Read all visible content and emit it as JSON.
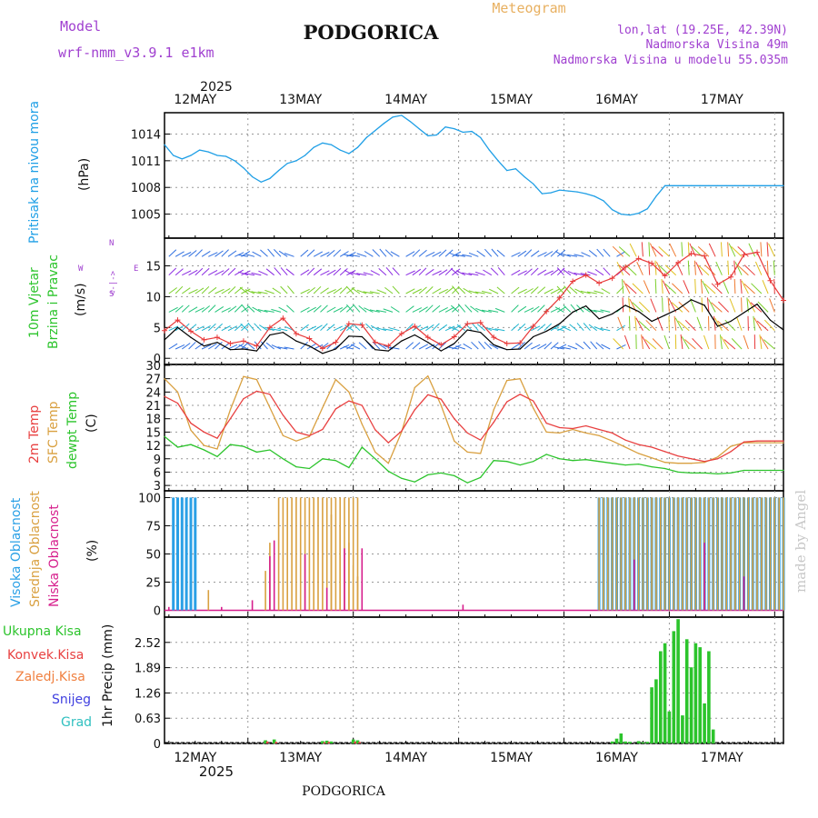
{
  "header": {
    "model_label": "Model",
    "model_name": "wrf-nmm_v3.9.1 e1km",
    "title": "PODGORICA",
    "meteogram_label": "Meteogram",
    "lonlat": "lon,lat (19.25E, 42.39N)",
    "elevation": "Nadmorska Visina 49m",
    "model_elevation": "Nadmorska Visina u modelu 55.035m",
    "bottom_title": "PODGORICA",
    "watermark": "made by Angel"
  },
  "colors": {
    "pressure": "#1f9fe6",
    "wind_speed": "#000000",
    "gust": "#e83a3a",
    "temp2m": "#e84040",
    "sfc_temp": "#d9a040",
    "dewpt": "#2cc42c",
    "cloud_high": "#2aa0e6",
    "cloud_mid": "#d9a040",
    "cloud_low": "#d61e8c",
    "precip_total": "#2cc42c",
    "precip_conv": "#e84040",
    "precip_frozen": "#f08040",
    "snow": "#4040e0",
    "graupel": "#30c0c0",
    "label_purple": "#a040d0",
    "meteogram_orange": "#e8b060"
  },
  "time_axis": {
    "year": "2025",
    "days": [
      "12MAY",
      "13MAY",
      "14MAY",
      "15MAY",
      "16MAY",
      "17MAY"
    ],
    "range_hours": [
      -7,
      134
    ]
  },
  "chart_data": [
    {
      "type": "line",
      "name": "pressure",
      "ylabel_left": "Pritisak na nivou mora",
      "ylabel_unit": "(hPa)",
      "ylim": [
        1002.3,
        1016.4
      ],
      "yticks": [
        1005,
        1008,
        1011,
        1014
      ],
      "x": [
        -7,
        -5,
        -3,
        -1,
        1,
        3,
        5,
        7,
        9,
        11,
        13,
        15,
        17,
        19,
        21,
        23,
        25,
        27,
        29,
        31,
        33,
        35,
        37,
        39,
        41,
        43,
        45,
        47,
        49,
        51,
        53,
        55,
        57,
        59,
        61,
        63,
        65,
        67,
        69,
        71,
        73,
        75,
        77,
        79,
        81,
        83,
        85,
        87,
        89,
        91,
        93,
        95,
        97,
        99,
        101,
        103,
        105,
        107,
        109,
        111,
        113,
        115,
        117,
        119,
        121,
        123,
        125,
        127,
        129,
        131,
        133,
        134
      ],
      "series": [
        {
          "y": [
            1012.8,
            1011.6,
            1011.2,
            1011.6,
            1012.2,
            1012.0,
            1011.6,
            1011.5,
            1011.0,
            1010.2,
            1009.2,
            1008.6,
            1009.0,
            1009.9,
            1010.7,
            1011.0,
            1011.6,
            1012.5,
            1013.0,
            1012.8,
            1012.2,
            1011.8,
            1012.5,
            1013.6,
            1014.4,
            1015.2,
            1015.9,
            1016.1,
            1015.4,
            1014.6,
            1013.8,
            1013.9,
            1014.8,
            1014.6,
            1014.2,
            1014.3,
            1013.6,
            1012.2,
            1011.0,
            1009.9,
            1010.1,
            1009.2,
            1008.4,
            1007.3,
            1007.4,
            1007.7,
            1007.6,
            1007.5,
            1007.3,
            1007.0,
            1006.5,
            1005.5,
            1005.0,
            1004.9,
            1005.1,
            1005.6,
            1007.0,
            1008.2,
            1008.2,
            1008.2,
            1008.2,
            1008.2,
            1008.2,
            1008.2,
            1008.2,
            1008.2,
            1008.2,
            1008.2,
            1008.2,
            1008.2,
            1008.2,
            1008.2
          ]
        }
      ]
    },
    {
      "type": "line",
      "name": "wind",
      "ylabel_left_1": "10m Vjetar",
      "ylabel_left_2": "Brzina i Pravac",
      "ylabel_unit": "(m/s)",
      "compass": {
        "n": "N",
        "s": "S",
        "e": "E",
        "w": "W",
        "arrow": "<-|->"
      },
      "ylim": [
        -1.0,
        19.5
      ],
      "yticks": [
        0,
        5,
        10,
        15
      ],
      "x": [
        -7,
        -4,
        -1,
        2,
        5,
        8,
        11,
        14,
        17,
        20,
        23,
        26,
        29,
        32,
        35,
        38,
        41,
        44,
        47,
        50,
        53,
        56,
        59,
        62,
        65,
        68,
        71,
        74,
        77,
        80,
        83,
        86,
        89,
        92,
        95,
        98,
        101,
        104,
        107,
        110,
        113,
        116,
        119,
        122,
        125,
        128,
        131,
        134
      ],
      "series": [
        {
          "name": "speed",
          "y": [
            3.0,
            5.0,
            3.4,
            2.0,
            2.6,
            1.4,
            1.5,
            1.2,
            3.8,
            4.2,
            2.8,
            2.0,
            0.8,
            1.5,
            3.6,
            3.5,
            1.4,
            1.2,
            2.8,
            3.8,
            2.6,
            1.2,
            2.4,
            4.6,
            4.2,
            2.2,
            1.4,
            1.5,
            3.5,
            4.4,
            5.6,
            7.5,
            8.5,
            6.4,
            7.2,
            8.6,
            7.6,
            6.0,
            7.0,
            8.0,
            9.5,
            8.6,
            5.2,
            6.0,
            7.4,
            8.8,
            6.2,
            4.6
          ]
        },
        {
          "name": "gust",
          "y": [
            4.5,
            6.2,
            4.4,
            3.0,
            3.4,
            2.4,
            2.8,
            2.0,
            5.0,
            6.5,
            4.0,
            3.2,
            1.6,
            2.6,
            5.6,
            5.4,
            2.6,
            2.0,
            4.0,
            5.2,
            3.4,
            2.2,
            3.5,
            5.6,
            5.8,
            3.4,
            2.4,
            2.5,
            5.2,
            7.6,
            9.8,
            12.5,
            13.5,
            12.2,
            13.0,
            14.8,
            16.2,
            15.4,
            13.4,
            15.5,
            17.0,
            16.6,
            12.0,
            13.2,
            16.8,
            17.2,
            12.6,
            9.4
          ]
        }
      ]
    },
    {
      "type": "line",
      "name": "temperature",
      "ylabel_left_1": "2m Temp",
      "ylabel_left_2": "SFC Temp",
      "ylabel_left_3": "dewpt Temp",
      "ylabel_unit": "(C)",
      "ylim": [
        1.8,
        30.2
      ],
      "yticks": [
        3,
        6,
        9,
        12,
        15,
        18,
        21,
        24,
        27,
        30
      ],
      "x": [
        -7,
        -4,
        -1,
        2,
        5,
        8,
        11,
        14,
        17,
        20,
        23,
        26,
        29,
        32,
        35,
        38,
        41,
        44,
        47,
        50,
        53,
        56,
        59,
        62,
        65,
        68,
        71,
        74,
        77,
        80,
        83,
        86,
        89,
        92,
        95,
        98,
        101,
        104,
        107,
        110,
        113,
        116,
        119,
        122,
        125,
        128,
        131,
        134
      ],
      "series": [
        {
          "name": "t2m",
          "y": [
            23.0,
            21.5,
            17.0,
            15.0,
            13.6,
            18.0,
            22.5,
            24.2,
            23.5,
            18.8,
            15.0,
            14.2,
            15.6,
            20.2,
            22.0,
            21.0,
            15.5,
            12.6,
            15.2,
            20.0,
            23.4,
            22.4,
            18.0,
            14.8,
            13.2,
            17.2,
            21.8,
            23.5,
            22.0,
            17.0,
            16.0,
            15.8,
            16.4,
            15.6,
            14.8,
            13.2,
            12.2,
            11.6,
            10.6,
            9.6,
            9.0,
            8.4,
            9.0,
            10.6,
            12.8,
            13.0,
            13.0,
            13.0
          ]
        },
        {
          "name": "sfc",
          "y": [
            27.0,
            24.0,
            15.4,
            12.0,
            11.2,
            20.0,
            27.5,
            26.8,
            20.5,
            14.2,
            13.0,
            14.0,
            20.5,
            26.8,
            24.0,
            16.8,
            10.5,
            8.0,
            15.0,
            25.0,
            27.6,
            21.0,
            13.0,
            10.5,
            10.2,
            20.0,
            26.6,
            27.0,
            20.4,
            15.0,
            14.8,
            15.6,
            14.8,
            14.2,
            13.0,
            11.6,
            10.2,
            9.2,
            8.2,
            8.0,
            8.0,
            8.2,
            9.4,
            11.8,
            12.6,
            12.6,
            12.6,
            12.6
          ]
        },
        {
          "name": "dewpt",
          "y": [
            14.0,
            11.6,
            12.2,
            11.0,
            9.5,
            12.2,
            11.8,
            10.5,
            11.0,
            9.0,
            7.2,
            6.8,
            9.0,
            8.6,
            7.0,
            11.6,
            9.0,
            6.2,
            4.6,
            3.8,
            5.4,
            5.8,
            5.2,
            3.6,
            4.8,
            8.6,
            8.4,
            7.6,
            8.4,
            10.0,
            9.0,
            8.6,
            8.8,
            8.4,
            8.0,
            7.6,
            7.8,
            7.2,
            6.8,
            6.0,
            5.8,
            5.8,
            5.6,
            5.8,
            6.4,
            6.4,
            6.4,
            6.4
          ]
        }
      ]
    },
    {
      "type": "bar",
      "name": "clouds",
      "ylabel_left_1": "Visoka Oblacnost",
      "ylabel_left_2": "Srednja Oblacnost",
      "ylabel_left_3": "Niska Oblacnost",
      "ylabel_unit": "(%)",
      "ylim": [
        -6,
        106
      ],
      "yticks": [
        0,
        25,
        50,
        75,
        100
      ],
      "x_step": 1,
      "series": [
        {
          "name": "high",
          "segments": [
            {
              "from": -5,
              "to": 0,
              "value": 100
            },
            {
              "from": 92,
              "to": 134,
              "value": 100
            }
          ]
        },
        {
          "name": "mid",
          "segments": [
            {
              "from": 19,
              "to": 37,
              "value": 100
            },
            {
              "from": 92,
              "to": 134,
              "value": 100
            }
          ],
          "peaks": [
            {
              "x": 3,
              "v": 18
            },
            {
              "x": 16,
              "v": 35
            },
            {
              "x": 17,
              "v": 60
            },
            {
              "x": 31,
              "v": 85
            },
            {
              "x": 33,
              "v": 75
            },
            {
              "x": 35,
              "v": 60
            },
            {
              "x": 36,
              "v": 40
            },
            {
              "x": 37,
              "v": 30
            }
          ]
        },
        {
          "name": "low",
          "peaks": [
            {
              "x": -6,
              "v": 3
            },
            {
              "x": 6,
              "v": 3
            },
            {
              "x": 13,
              "v": 9
            },
            {
              "x": 17,
              "v": 48
            },
            {
              "x": 18,
              "v": 62
            },
            {
              "x": 25,
              "v": 50
            },
            {
              "x": 30,
              "v": 20
            },
            {
              "x": 34,
              "v": 55
            },
            {
              "x": 38,
              "v": 55
            },
            {
              "x": 61,
              "v": 5
            },
            {
              "x": 100,
              "v": 45
            },
            {
              "x": 116,
              "v": 60
            },
            {
              "x": 125,
              "v": 30
            }
          ]
        }
      ]
    },
    {
      "type": "bar",
      "name": "precip",
      "ylabel_left_1": "Ukupna Kisa",
      "ylabel_left_2": "Konvek.Kisa",
      "ylabel_left_3": "Zaledj.Kisa",
      "ylabel_left_4": "Snijeg",
      "ylabel_left_5": "Grad",
      "ylabel_unit": "1hr Precip (mm)",
      "ylim": [
        0,
        3.15
      ],
      "yticks": [
        0,
        0.63,
        1.26,
        1.89,
        2.52
      ],
      "series": [
        {
          "name": "total",
          "x": [
            16,
            18,
            29,
            30,
            31,
            36,
            37,
            95,
            96,
            97,
            98,
            99,
            101,
            102,
            103,
            104,
            105,
            106,
            107,
            108,
            109,
            110,
            111,
            112,
            113,
            114,
            115,
            116,
            117,
            118
          ],
          "y": [
            0.08,
            0.1,
            0.06,
            0.07,
            0.05,
            0.1,
            0.08,
            0.05,
            0.12,
            0.25,
            0.05,
            0.04,
            0.06,
            0.03,
            0.04,
            1.4,
            1.6,
            2.3,
            2.5,
            0.8,
            2.8,
            3.1,
            0.7,
            2.6,
            1.9,
            2.5,
            2.4,
            1.0,
            2.3,
            0.35
          ]
        },
        {
          "name": "conv",
          "x": [
            16,
            18,
            29,
            30,
            36,
            37
          ],
          "y": [
            0.05,
            0.04,
            0.03,
            0.04,
            0.05,
            0.04
          ]
        }
      ]
    }
  ]
}
